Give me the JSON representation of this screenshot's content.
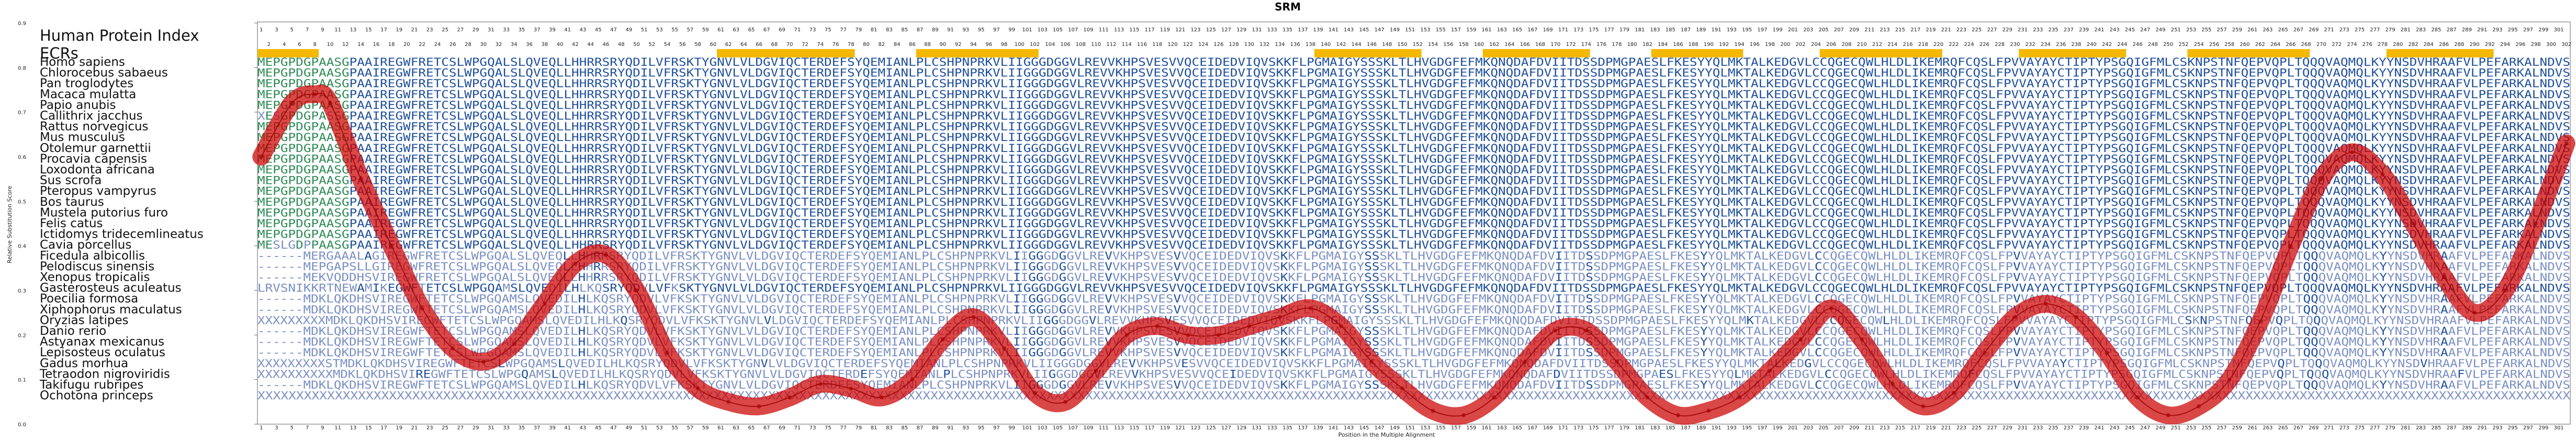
{
  "chart_data": {
    "type": "line",
    "title": "SRM",
    "xlabel": "Position in the Multiple Alignment",
    "ylabel": "Relative Substitution Score",
    "xlim": [
      1,
      302
    ],
    "ylim": [
      0,
      0.9
    ],
    "y_ticks": [
      "0.9",
      "0.8",
      "0.7",
      "0.6",
      "0.5",
      "0.4",
      "0.3",
      "0.2",
      "0.1",
      "0.0"
    ],
    "y_tick_values": [
      0.9,
      0.8,
      0.7,
      0.6,
      0.5,
      0.4,
      0.3,
      0.2,
      0.1,
      0.0
    ],
    "tick_step": 2,
    "series": [
      {
        "color": "#cc0000",
        "x": [
          1,
          5,
          8,
          10,
          14,
          18,
          22,
          26,
          30,
          34,
          38,
          42,
          46,
          50,
          54,
          58,
          62,
          66,
          70,
          74,
          78,
          82,
          86,
          90,
          94,
          98,
          102,
          106,
          110,
          114,
          118,
          122,
          126,
          130,
          134,
          138,
          142,
          146,
          150,
          154,
          158,
          162,
          166,
          170,
          174,
          178,
          182,
          186,
          190,
          194,
          198,
          202,
          206,
          210,
          214,
          218,
          222,
          226,
          230,
          234,
          238,
          242,
          246,
          250,
          254,
          258,
          262,
          266,
          270,
          274,
          278,
          282,
          286,
          290,
          294,
          298,
          302
        ],
        "y": [
          0.6,
          0.72,
          0.74,
          0.72,
          0.55,
          0.4,
          0.26,
          0.17,
          0.14,
          0.18,
          0.27,
          0.36,
          0.38,
          0.3,
          0.16,
          0.08,
          0.05,
          0.04,
          0.06,
          0.09,
          0.08,
          0.06,
          0.1,
          0.19,
          0.24,
          0.17,
          0.07,
          0.05,
          0.12,
          0.2,
          0.22,
          0.2,
          0.2,
          0.22,
          0.24,
          0.26,
          0.22,
          0.14,
          0.08,
          0.03,
          0.02,
          0.06,
          0.14,
          0.21,
          0.21,
          0.14,
          0.06,
          0.02,
          0.03,
          0.06,
          0.12,
          0.19,
          0.26,
          0.19,
          0.09,
          0.04,
          0.07,
          0.16,
          0.24,
          0.27,
          0.24,
          0.16,
          0.06,
          0.02,
          0.04,
          0.1,
          0.23,
          0.4,
          0.55,
          0.61,
          0.56,
          0.45,
          0.33,
          0.25,
          0.3,
          0.45,
          0.63
        ]
      }
    ],
    "ecr_blocks": [
      [
        1,
        8
      ],
      [
        61,
        78
      ],
      [
        87,
        102
      ],
      [
        139,
        152
      ],
      [
        161,
        174
      ],
      [
        183,
        194
      ],
      [
        205,
        220
      ],
      [
        231,
        244
      ],
      [
        253,
        268
      ],
      [
        279,
        292
      ]
    ]
  },
  "alignment": {
    "human_index_label": "Human Protein Index",
    "ecr_label": "ECRs",
    "sequences": [
      {
        "name": "Homo sapiens",
        "seq": "MEPGPDGPAASGPAAIREGWFRETCSLWPGQALSLQVEQLLHHRRSRYQDILVFRSKTYGNVLVLDGVIQCTERDEFSYQEMIANLPLCSHPNPRKVLIIGGGDGGVLREVVKHPSVESVVQCEIDEDVIQVSKKFLPGMAIGYSSSKLTLHVGDGFEFMKQNQDAFDVIITDSSDPMGPAESLFKESYYQLMKTALKEDGVLCCQGECQWLHLDLIKEMRQFCQSLFPVVAYAYCTIPTYPSGQIGFMLCSKNPSTNFQEPVQPLTQQQVAQMQLKYYNSDVHRAAFVLPEFARKALNDVS"
      },
      {
        "name": "Chlorocebus sabaeus",
        "seq": "MEPGPDGPAASGPAAIREGWFRETCSLWPGQALSLQVEQLLHHRRSRYQDILVFRSKTYGNVLVLDGVIQCTERDEFSYQEMIANLPLCSHPNPRKVLIIGGGDGGVLREVVKHPSVESVVQCEIDEDVIQVSKKFLPGMAIGYSSSKLTLHVGDGFEFMKQNQDAFDVIITDSSDPMGPAESLFKESYYQLMKTALKEDGVLCCQGECQWLHLDLIKEMRQFCQSLFPVVAYAYCTIPTYPSGQIGFMLCSKNPSTNFQEPVQPLTQQQVAQMQLKYYNSDVHRAAFVLPEFARKALNDVS"
      },
      {
        "name": "Pan troglodytes",
        "seq": "MEPGPDGPAASGPAAIREGWFRETCSLWPGQALSLQVEQLLHHRRSRYQDILVFRSKTYGNVLVLDGVIQCTERDEFSYQEMIANLPLCSHPNPRKVLIIGGGDGGVLREVVKHPSVESVVQCEIDEDVIQVSKKFLPGMAIGYSSSKLTLHVGDGFEFMKQNQDAFDVIITDSSDPMGPAESLFKESYYQLMKTALKEDGVLCCQGECQWLHLDLIKEMRQFCQSLFPVVAYAYCTIPTYPSGQIGFMLCSKNPSTNFQEPVQPLTQQQVAQMQLKYYNSDVHRAAFVLPEFARKALNDVS"
      },
      {
        "name": "Macaca mulatta",
        "seq": "MEPGPDGPAASGPAAIREGWFRETCSLWPGQALSLQVEQLLHHRRSRYQDILVFRSKTYGNVLVLDGVIQCTERDEFSYQEMIANLPLCSHPNPRKVLIIGGGDGGVLREVVKHPSVESVVQCEIDEDVIQVSKKFLPGMAIGYSSSKLTLHVGDGFEFMKQNQDAFDVIITDSSDPMGPAESLFKESYYQLMKTALKEDGVLCCQGECQWLHLDLIKEMRQFCQSLFPVVAYAYCTIPTYPSGQIGFMLCSKNPSTNFQEPVQPLTQQQVAQMQLKYYNSDVHRAAFVLPEFARKALNDVS"
      },
      {
        "name": "Papio anubis",
        "seq": "MEPGPDGPAASGPAAIREGWFRETCSLWPGQALSLQVEQLLHHRRSRYQDILVFRSKTYGNVLVLDGVIQCTERDEFSYQEMIANLPLCSHPNPRKVLIIGGGDGGVLREVVKHPSVESVVQCEIDEDVIQVSKKFLPGMAIGYSSSKLTLHVGDGFEFMKQNQDAFDVIITDSSDPMGPAESLFKESYYQLMKTALKEDGVLCCQGECQWLHLDLIKEMRQFCQSLFPVVAYAYCTIPTYPSGQIGFMLCSKNPSTNFQEPVQPLTQQQVAQMQLKYYNSDVHRAAFVLPEFARKALNDVS"
      },
      {
        "name": "Callithrix jacchus",
        "seq": "XESGPDGPASSGPAAIREGWFRETCSLWPGQALSLQVEQLLHHRRSRYQDILVFRSKTYGNVLVLDGVIQCTERDEFSYQEMIANLPLCSHPNPRKVLIIGGGDGGVLREVVKHPSVESVVQCEIDEDVIQVSKKFLPGMAIGYSSSKLTLHVGDGFEFMKQNQDAFDVIITDSSDPMGPAESLFKESYYQLMKTALKEDGVLCCQGECQWLHLDLIKEMRQFCQSLFPVVAYAYCTIPTYPSGQIGFMLCSKNPSTNFQEPVQPLTQQQVAQMQLKYYNSDVHRAAFVLPEFARKALNDVS"
      },
      {
        "name": "Rattus norvegicus",
        "seq": "MEPGPDGPAASGPAAIREGWFRETCSLWPGQALSLQVEQLLHHRRSRYQDILVFRSKTYGNVLVLDGVIQCTERDEFSYQEMIANLPLCSHPNPRKVLIIGGGDGGVLREVVKHPSVESVVQCEIDEDVIQVSKKFLPGMAIGYSSSKLTLHVGDGFEFMKQNQDAFDVIITDSSDPMGPAESLFKESYYQLMKTALKEDGVLCCQGECQWLHLDLIKEMRQFCQSLFPVVAYAYCTIPTYPSGQIGFMLCSKNPSTNFQEPVQPLTQQQVAQMQLKYYNSDVHRAAFVLPEFARKALNDVS"
      },
      {
        "name": "Mus musculus",
        "seq": "MEPGPDGPAASGPAAIREGWFRETCSLWPGQALSLQVEQLLHHRRSRYQDILVFRSKTYGNVLVLDGVIQCTERDEFSYQEMIANLPLCSHPNPRKVLIIGGGDGGVLREVVKHPSVESVVQCEIDEDVIQVSKKFLPGMAIGYSSSKLTLHVGDGFEFMKQNQDAFDVIITDSSDPMGPAESLFKESYYQLMKTALKEDGVLCCQGECQWLHLDLIKEMRQFCQSLFPVVAYAYCTIPTYPSGQIGFMLCSKNPSTNFQEPVQPLTQQQVAQMQLKYYNSDVHRAAFVLPEFARKALNDVS"
      },
      {
        "name": "Otolemur garnettii",
        "seq": "MEPGPDGPAASGPAAIREGWFRETCSLWPGQALSLQVEQLLHHRRSRYQDILVFRSKTYGNVLVLDGVIQCTERDEFSYQEMIANLPLCSHPNPRKVLIIGGGDGGVLREVVKHPSVESVVQCEIDEDVIQVSKKFLPGMAIGYSSSKLTLHVGDGFEFMKQNQDAFDVIITDSSDPMGPAESLFKESYYQLMKTALKEDGVLCCQGECQWLHLDLIKEMRQFCQSLFPVVAYAYCTIPTYPSGQIGFMLCSKNPSTNFQEPVQPLTQQQVAQMQLKYYNSDVHRAAFVLPEFARKALNDVS"
      },
      {
        "name": "Procavia capensis",
        "seq": "MEPGPDGPAASGPAAIREGWFRETCSLWPGQALSLQVEQLLHHRRSRYQDILVFRSKTYGNVLVLDGVIQCTERDEFSYQEMIANLPLCSHPNPRKVLIIGGGDGGVLREVVKHPSVESVVQCEIDEDVIQVSKKFLPGMAIGYSSSKLTLHVGDGFEFMKQNQDAFDVIITDSSDPMGPAESLFKESYYQLMKTALKEDGVLCCQGECQWLHLDLIKEMRQFCQSLFPVVAYAYCTIPTYPSGQIGFMLCSKNPSTNFQEPVQPLTQQQVAQMQLKYYNSDVHRAAFVLPEFARKALNDVS"
      },
      {
        "name": "Loxodonta africana",
        "seq": "MEPGPDGPAASGPAAIREGWFRETCSLWPGQALSLQVEQLLHHRRSRYQDILVFRSKTYGNVLVLDGVIQCTERDEFSYQEMIANLPLCSHPNPRKVLIIGGGDGGVLREVVKHPSVESVVQCEIDEDVIQVSKKFLPGMAIGYSSSKLTLHVGDGFEFMKQNQDAFDVIITDSSDPMGPAESLFKESYYQLMKTALKEDGVLCCQGECQWLHLDLIKEMRQFCQSLFPVVAYAYCTIPTYPSGQIGFMLCSKNPSTNFQEPVQPLTQQQVAQMQLKYYNSDVHRAAFVLPEFARKALNDVS"
      },
      {
        "name": "Sus scrofa",
        "seq": "MEPGPDGPAASGPAAIREGWFRETCSLWPGQALSLQVEQLLHHRRSRYQDILVFRSKTYGNVLVLDGVIQCTERDEFSYQEMIANLPLCSHPNPRKVLIIGGGDGGVLREVVKHPSVESVVQCEIDEDVIQVSKKFLPGMAIGYSSSKLTLHVGDGFEFMKQNQDAFDVIITDSSDPMGPAESLFKESYYQLMKTALKEDGVLCCQGECQWLHLDLIKEMRQFCQSLFPVVAYAYCTIPTYPSGQIGFMLCSKNPSTNFQEPVQPLTQQQVAQMQLKYYNSDVHRAAFVLPEFARKALNDVS"
      },
      {
        "name": "Pteropus vampyrus",
        "seq": "MEPGPDGPAASGPAAIREGWFRETCSLWPGQALSLQVEQLLHHRRSRYQDILVFRSKTYGNVLVLDGVIQCTERDEFSYQEMIANLPLCSHPNPRKVLIIGGGDGGVLREVVKHPSVESVVQCEIDEDVIQVSKKFLPGMAIGYSSSKLTLHVGDGFEFMKQNQDAFDVIITDSSDPMGPAESLFKESYYQLMKTALKEDGVLCCQGECQWLHLDLIKEMRQFCQSLFPVVAYAYCTIPTYPSGQIGFMLCSKNPSTNFQEPVQPLTQQQVAQMQLKYYNSDVHRAAFVLPEFARKALNDVS"
      },
      {
        "name": "Bos taurus",
        "seq": "MEPGPDGPAASGPAAIREGWFRETCSLWPGQALSLQVEQLLHHRRSRYQDILVFRSKTYGNVLVLDGVIQCTERDEFSYQEMIANLPLCSHPNPRKVLIIGGGDGGVLREVVKHPSVESVVQCEIDEDVIQVSKKFLPGMAIGYSSSKLTLHVGDGFEFMKQNQDAFDVIITDSSDPMGPAESLFKESYYQLMKTALKEDGVLCCQGECQWLHLDLIKEMRQFCQSLFPVVAYAYCTIPTYPSGQIGFMLCSKNPSTNFQEPVQPLTQQQVAQMQLKYYNSDVHRAAFVLPEFARKALNDVS"
      },
      {
        "name": "Mustela putorius furo",
        "seq": "MEPGPDGPAASGPAAIREGWFRETCSLWPGQALSLQVEQLLHHRRSRYQDILVFRSKTYGNVLVLDGVIQCTERDEFSYQEMIANLPLCSHPNPRKVLIIGGGDGGVLREVVKHPSVESVVQCEIDEDVIQVSKKFLPGMAIGYSSSKLTLHVGDGFEFMKQNQDAFDVIITDSSDPMGPAESLFKESYYQLMKTALKEDGVLCCQGECQWLHLDLIKEMRQFCQSLFPVVAYAYCTIPTYPSGQIGFMLCSKNPSTNFQEPVQPLTQQQVAQMQLKYYNSDVHRAAFVLPEFARKALNDVS"
      },
      {
        "name": "Felis catus",
        "seq": "MEPGPDGPAASGPAAIREGWFRETCSLWPGQALSLQVEQLLHHRRSRYQDILVFRSKTYGNVLVLDGVIQCTERDEFSYQEMIANLPLCSHPNPRKVLIIGGGDGGVLREVVKHPSVESVVQCEIDEDVIQVSKKFLPGMAIGYSSSKLTLHVGDGFEFMKQNQDAFDVIITDSSDPMGPAESLFKESYYQLMKTALKEDGVLCCQGECQWLHLDLIKEMRQFCQSLFPVVAYAYCTIPTYPSGQIGFMLCSKNPSTNFQEPVQPLTQQQVAQMQLKYYNSDVHRAAFVLPEFARKALNDVS"
      },
      {
        "name": "Ictidomys tridecemlineatus",
        "seq": "MEPGPDGPAASGPAAIREGWFRETCSLWPGQALSLQVEQLLHHRRSRYQDILVFRSKTYGNVLVLDGVIQCTERDEFSYQEMIANLPLCSHPNPRKVLIIGGGDGGVLREVVKHPSVESVVQCEIDEDVIQVSKKFLPGMAIGYSSSKLTLHVGDGFEFMKQNQDAFDVIITDSSDPMGPAESLFKESYYQLMKTALKEDGVLCCQGECQWLHLDLIKEMRQFCQSLFPVVAYAYCTIPTYPSGQIGFMLCSKNPSTNFQEPVQPLTQQQVAQMQLKYYNSDVHRAAFVLPEFARKALNDVS"
      },
      {
        "name": "Cavia porcellus",
        "seq": "MESLGDPPAASGPAAIREGWFRETCSLWPGQALSLQVEQLLHHRRSRYQDILVFRSKTYGNVLVLDGVIQCTERDEFSYQEMIANLPLCSHPNPRKVLIIGGGDGGVLREVVKHPSVESVVQCEIDEDVIQVSKKFLPGMAIGYSSSKLTLHVGDGFEFMKQNQDAFDVIITDSSDPMGPAESLFKESYYQLMKTALKEDGVLCCQGECQWLHLDLIKEMRQFCQSLFPVVAYAYCTIPTYPSGQIGFMLCSKNPSTNFQEPVQPLTQQQVAQMQLKYYNSDVHRAAFVLPEFARKALNDVS"
      },
      {
        "name": "Ficedula albicollis",
        "seq": "------MERGAAALAGIREGWFRETCSLWPGQALSLQVEQLLHHRRSRYQDILVFRSKTYGNVLVLDGVIQCTERDEFSYQEMIANLPLCSHPNPRKVLIIGGGDGGVLREVVKHPSVESVVQCEIDEDVIQVSKKFLPGMAIGYSSSKLTLHVGDGFEFMKQNQDAFDVIITDSSDPMGPAESLFKESYYQLMKTALKEDGVLCCQGECQWLHLDLIKEMRQFCQSLFPVVAYAYCTIPTYPSGQIGFMLCSKNPSTNFQEPVQPLTQQQVAQMQLKYYNSDVHRAAFVLPEFARKALNDVS"
      },
      {
        "name": "Pelodiscus sinensis",
        "seq": "------MEPGAPSLLGIREGWFRETCSLWPGQALSLQVEQLLHHRRSRYQDILVFRSKTYGNVLVLDGVIQCTERDEFSYQEMIANLPLCSHPNPRKVLIIGGGDGGVLREVVKHPSVESVVQCEIDEDVIQVSKKFLPGMAIGYSSSKLTLHVGDGFEFMKQNQDAFDVIITDSSDPMGPAESLFKESYYQLMKTALKEDGVLCCQGECQWLHLDLIKEMRQFCQSLFPVVAYAYCTIPTYPSGQIGFMLCSKNPSTNFQEPVQPLTQQQVAQMQLKYYNSDVHRAAFVLPEFARKALNDVS"
      },
      {
        "name": "Xenopus tropicalis",
        "seq": "------MEKVQDDHSVIREGWFRETCSLWPGQALSLQVEQLLHHRRSRYQDILVFRSKTYGNVLVLDGVIQCTERDEFSYQEMIANLPLCSHPNPRKVLIIGGGDGGVLREVVKHPSVESVVQCEIDEDVIQVSKKFLPGMAIGYSSSKLTLHVGDGFEFMKQNQDAFDVIITDSSDPMGPAESLFKESYYQLMKTALKEDGVLCCQGECQWLHLDLIKEMRQFCQSLFPVVAYAYCTIPTYPSGQIGFMLCSKNPSTNFQEPVQPLTQQQVAQMQLKYYNSDVHRAAFVLPEFARKALNDVS"
      },
      {
        "name": "Gasterosteus aculeatus",
        "seq": "LRVSNIKKRTNEWAMIKEGWFTETCSLWPGQAMSLQVEDILHLKQSRYQDVLVFKSKTYGNVLVLDGVIQCTERDEFSYQEMIANLPLCSHPNPRKVLIIGGGDGGVLREVVKHPSVESVVQCEIDEDVIQVSKKFLPGMAIGYSSSKLTLHVGDGFEFMKQNQDAFDVIITDSSDPMGPAESLFKESYYQLMKTALKEDGVLCCQGECQWLHLDLIKEMRQFCQSLFPVVAYAYCTIPTYPSGQIGFMLCSKNPSTNFQEPVQPLTQQQVAQMQLKYYNSDVHRAAFVLPEFARKALNDVS"
      },
      {
        "name": "Poecilia formosa",
        "seq": "------MDKLQKDHSVIREGWFTETCSLWPGQAMSLQVEDILHLKQSRYQDVLVFKSKTYGNVLVLDGVIQCTERDEFSYQEMIANLPLCSHPNPRKVLIIGGGDGGVLREVVKHPSVESVVQCEIDEDVIQVSKKFLPGMAIGYSSSKLTLHVGDGFEFMKQNQDAFDVIITDSSDPMGPAESLFKESYYQLMKTALKEDGVLCCQGECQWLHLDLIKEMRQFCQSLFPVVAYAYCTIPTYPSGQIGFMLCSKNPSTNFQEPVQPLTQQQVAQMQLKYYNSDVHRAAFVLPEFARKALNDVS"
      },
      {
        "name": "Xiphophorus maculatus",
        "seq": "------MDKLQKDHSVIREGWFTETCSLWPGQAMSLQVEDILHLKQSRYQDVLVFKSKTYGNVLVLDGVIQCTERDEFSYQEMIANLPLCSHPNPRKVLIIGGGDGGVLREVVKHPSVESVVQCEIDEDVIQVSKKFLPGMAIGYSSSKLTLHVGDGFEFMKQNQDAFDVIITDSSDPMGPAESLFKESYYQLMKTALKEDGVLCCQGECQWLHLDLIKEMRQFCQSLFPVVAYAYCTIPTYPSGQIGFMLCSKNPSTNFQEPVQPLTQQQVAQMQLKYYNSDVHRAAFVLPEFARKALNDVS"
      },
      {
        "name": "Oryzias latipes",
        "seq": "XXXXXXXXXMDKLQKDHSVIREGWFTETCSLWPGQAMSLQVEDILHLKQSRYQDVLVFKSKTYGNVLVLDGVIQCTERDEFSYQEMIANLPLCSHPNPRKVLIIGGGDGGVLREVVKHPSVESVVQCEIDEDVIQVSKKFLPGMAIGYSSSKLTLHVGDGFEFMKQNQDAFDVIITDSSDPMGPAESLFKESYYQLMKTALKEDGVLCCQGECQWLHLDLIKEMRQFCQSLFPVVAYAYCTIPTYPSGQIGFMLCSKNPSTNFQEPVQPLTQQQVAQMQLKYYNSDVHRAAFVLPEFARKALNDVS"
      },
      {
        "name": "Danio rerio",
        "seq": "------MDKLQKDHSVIREGWFTETCSLWPGQAMSLQVEDILHLKQSRYQDVLVFKSKTYGNVLVLDGVIQCTERDEFSYQEMIANLPLCSHPNPRKVLIIGGGDGGVLREVVKHPSVESVVQCEIDEDVIQVSKKFLPGMAIGYSSSKLTLHVGDGFEFMKQNQDAFDVIITDSSDPMGPAESLFKESYYQLMKTALKEDGVLCCQGECQWLHLDLIKEMRQFCQSLFPVVAYAYCTIPTYPSGQIGFMLCSKNPSTNFQEPVQPLTQQQVAQMQLKYYNSDVHRAAFVLPEFARKALNDVS"
      },
      {
        "name": "Astyanax mexicanus",
        "seq": "------MDKLQKDHSVIREGWFTETCSLWPGQAMSLQVEDILHLKQSRYQDVLVFKSKTYGNVLVLDGVIQCTERDEFSYQEMIANLPLCSHPNPRKVLIIGGGDGGVLREVVKHPSVESVVQCEIDEDVIQVSKKFLPGMAIGYSSSKLTLHVGDGFEFMKQNQDAFDVIITDSSDPMGPAESLFKESYYQLMKTALKEDGVLCCQGECQWLHLDLIKEMRQFCQSLFPVVAYAYCTIPTYPSGQIGFMLCSKNPSTNFQEPVQPLTQQQVAQMQLKYYNSDVHRAAFVLPEFARKALNDVS"
      },
      {
        "name": "Lepisosteus oculatus",
        "seq": "------MDKLQKDHSVIREGWFTETCSLWPGQAMSLQVEDILHLKQSRYQDVLVFKSKTYGNVLVLDGVIQCTERDEFSYQEMIANLPLCSHPNPRKVLIIGGGDGGVLREVVKHPSVESVVQCEIDEDVIQVSKKFLPGMAIGYSSSKLTLHVGDGFEFMKQNQDAFDVIITDSSDPMGPAESLFKESYYQLMKTALKEDGVLCCQGECQWLHLDLIKEMRQFCQSLFPVVAYAYCTIPTYPSGQIGFMLCSKNPSTNFQEPVQPLTQQQVAQMQLKYYNSDVHRAAFVLPEFARKALNDVS"
      },
      {
        "name": "Gadus morhua",
        "seq": "XXXXXXXXXSTMDKLQKDHSVIREGWFTETCSLWPGQAMSLQVEDILHLKQSRYQDVLVFKSKTYGNVLVLDGVIQCTERDEFSYQEMIANLPLCSHPNPRKVLIIGGGDGGVLREVVKHPSVESVVQCEIDEDVIQVSKKFLPGMAIGYSSSKLTLHVGDGFEFMKQNQDAFDVIITDSSDPMGPAESLFKESYYQLMKTALKEDGVLCCQGECQWLHLDLIKEMRQFCQSLFPVVAYAYCTIPTYPSGQIGFMLCSKNPSTNFQEPVQPLTQQQVAQMQLKYYNSDVHRAAFVLPEFARKALNDVS"
      },
      {
        "name": "Tetraodon nigroviridis",
        "seq": "XXXXXXXXXXMDKLQKDHSVIREGWFTETCSLWPGQAMSLQVEDILHLKQSRYQDVLVFKSKTYGNVLVLDGVIQCTERDEFSYQEMIANLPLCSHPNPRKVLIIGGGDGGVLREVVKHPSVESVVQCEIDEDVIQVSKKFLPGMAIGYSSSKLTLHVGDGFEFMKQNQDAFDVIITDSSDPMGPAESLFKESYYQLMKTALKEDGVLCCQGECQWLHLDLIKEMRQFCQSLFPVVAYAYCTIPTYPSGQIGFMLCSKNPSTNFQEPVQPLTQQQVAQMQLKYYNSDVHRAAFVLPEFARKALNDVS"
      },
      {
        "name": "Takifugu rubripes",
        "seq": "------MDKLQKDHSVIREGWFTETCSLWPGQAMSLQVEDILHLKQSRYQDVLVFKSKTYGNVLVLDGVIQCTERDEFSYQEMIANLPLCSHPNPRKVLIIGGGDGGVLREVVKHPSVESVVQCEIDEDVIQVSKKFLPGMAIGYSSSKLTLHVGDGFEFMKQNQDAFDVIITDSSDPMGPAESLFKESYYQLMKTALKEDGVLCCQGECQWLHLDLIKEMRQFCQSLFPVVAYAYCTIPTYPSGQIGFMLCSKNPSTNFQEPVQPLTQQQVAQMQLKYYNSDVHRAAFVLPEFARKALNDVS"
      },
      {
        "name": "Ochotona princeps",
        "seq": "XXXXXXXXXXXXXXXXXXXXXXXXXXXXXXXXXXXXXXXXXXXXXXXXXXXXXXXXXXXXXXXXXXXXXXXXXXXXXXXXXXXXXXXXXXXXXXXXXXXXXXXXXXXXXXXXXXXXXXXXXXXXXXXXXXXXXXXXXXXXXXXXXXXXXXXXXXXXXXXXXXXXXXXXXXXXXXXXXXXXXXXXXXXXXXXXXXXXXXXXXXXXXXXXXXXXXXXXXXXXXXXXXXXXXXXXXXXXXXXXXXXXXXXXXXXXXXXXXXXXXXXXXXXXXXXXXXXXXXXXXXXXXXXXXXXXXXXXXXX"
      }
    ]
  },
  "colors": {
    "curve": "#cc0000",
    "ecr_bar": "#f5b800",
    "residue_conserved": "#1f4f9c",
    "residue_variable": "#7b8fc4",
    "residue_nterm": "#2e8b57",
    "frame": "#666666"
  }
}
